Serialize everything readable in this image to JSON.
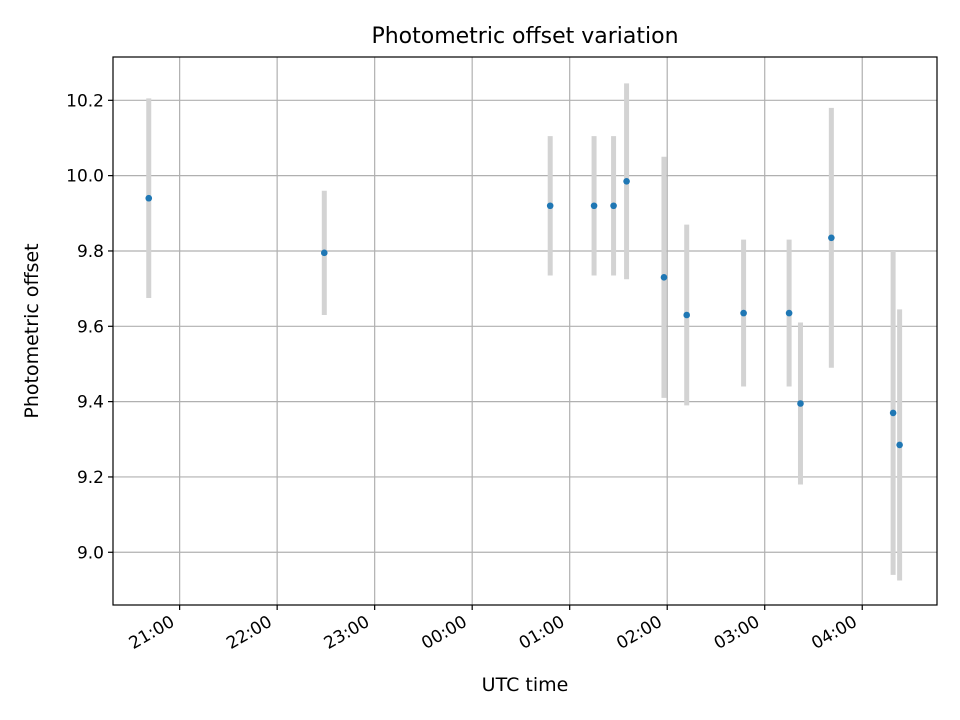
{
  "chart_data": {
    "type": "scatter",
    "title": "Photometric offset variation",
    "xlabel": "UTC time",
    "ylabel": "Photometric offset",
    "x_axis": "time (UTC, HH:MM)",
    "xlim": [
      "20:19",
      "04:46"
    ],
    "ylim": [
      8.86,
      10.315
    ],
    "x_ticks": [
      "21:00",
      "22:00",
      "23:00",
      "00:00",
      "01:00",
      "02:00",
      "03:00",
      "04:00"
    ],
    "y_ticks": [
      9.0,
      9.2,
      9.4,
      9.6,
      9.8,
      10.0,
      10.2
    ],
    "y_tick_labels": [
      "9.0",
      "9.2",
      "9.4",
      "9.6",
      "9.8",
      "10.0",
      "10.2"
    ],
    "grid": true,
    "marker_color": "#1f77b4",
    "errorbar_color": "#d3d3d3",
    "series": [
      {
        "points": [
          {
            "x": "20:41",
            "y": 9.94,
            "err": 0.265
          },
          {
            "x": "22:29",
            "y": 9.795,
            "err": 0.165
          },
          {
            "x": "00:48",
            "y": 9.92,
            "err": 0.185
          },
          {
            "x": "01:15",
            "y": 9.92,
            "err": 0.185
          },
          {
            "x": "01:27",
            "y": 9.92,
            "err": 0.185
          },
          {
            "x": "01:35",
            "y": 9.985,
            "err": 0.26
          },
          {
            "x": "01:58",
            "y": 9.73,
            "err": 0.32
          },
          {
            "x": "02:12",
            "y": 9.63,
            "err": 0.24
          },
          {
            "x": "02:47",
            "y": 9.635,
            "err": 0.195
          },
          {
            "x": "03:15",
            "y": 9.635,
            "err": 0.195
          },
          {
            "x": "03:22",
            "y": 9.395,
            "err": 0.215
          },
          {
            "x": "03:41",
            "y": 9.835,
            "err": 0.345
          },
          {
            "x": "04:19",
            "y": 9.37,
            "err": 0.43
          },
          {
            "x": "04:23",
            "y": 9.285,
            "err": 0.36
          }
        ]
      }
    ]
  }
}
